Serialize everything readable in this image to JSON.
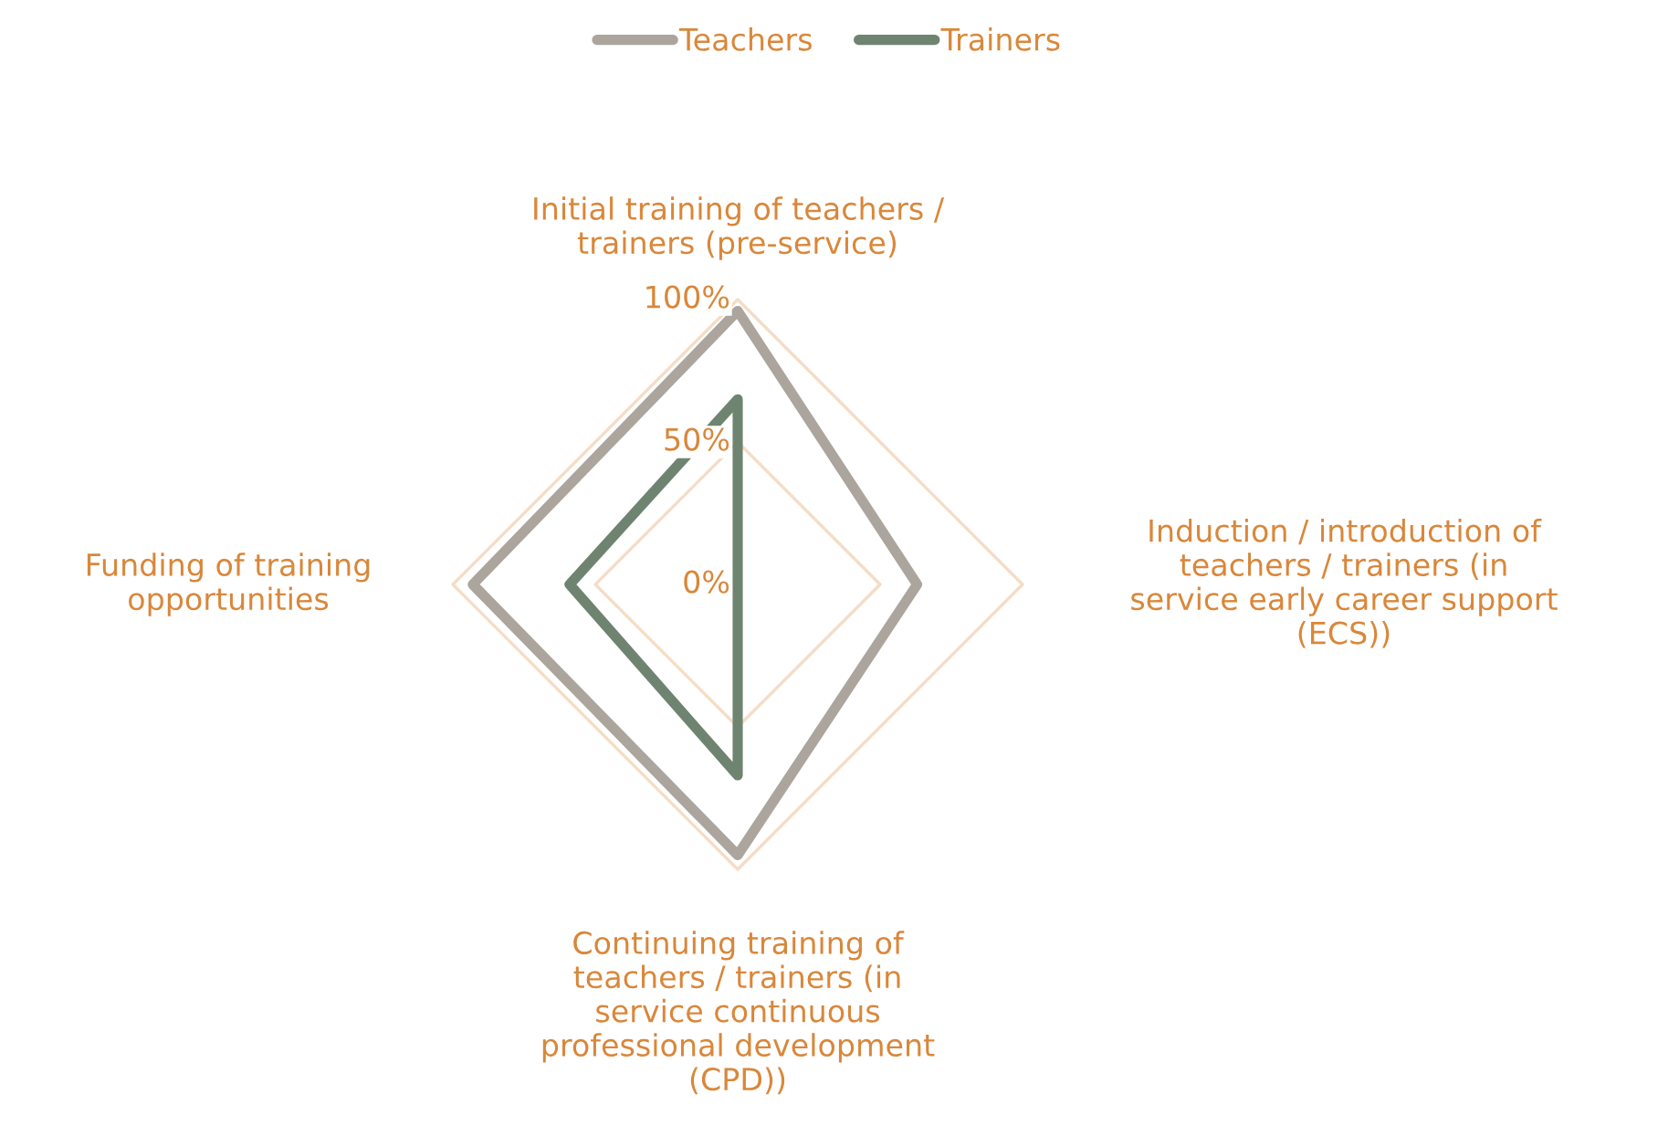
{
  "chart_data": {
    "type": "radar",
    "categories": [
      "Initial training of teachers / trainers (pre-service)",
      "Induction / introduction of teachers / trainers (in service early career support (ECS))",
      "Continuing training of teachers / trainers (in service continuous professional development (CPD))",
      "Funding of training opportunities"
    ],
    "series": [
      {
        "name": "Teachers",
        "color": "#aba59d",
        "values": [
          0.96,
          0.63,
          0.95,
          0.93
        ]
      },
      {
        "name": "Trainers",
        "color": "#6e8470",
        "values": [
          0.65,
          0,
          0.67,
          0.59
        ]
      }
    ],
    "ylim": [
      0,
      1
    ],
    "yticks": [
      {
        "value": 0,
        "label": "0%"
      },
      {
        "value": 0.5,
        "label": "50%"
      },
      {
        "value": 1,
        "label": "100%"
      }
    ],
    "grid": true,
    "legend": "top",
    "marker": "none",
    "line_style": "solid"
  }
}
